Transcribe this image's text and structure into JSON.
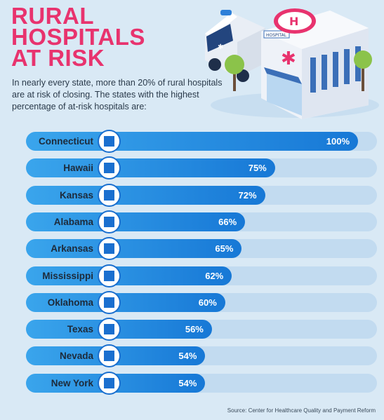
{
  "title_lines": [
    "RURAL",
    "HOSPITALS",
    "AT RISK"
  ],
  "intro": "In nearly every state, more than 20% of rural hospitals are at risk of closing. The states with the highest percentage of at-risk hospitals are:",
  "source": "Source: Center for Healthcare Quality and Payment Reform",
  "illustration": {
    "hospital_sign": "HOSPITAL",
    "icons": [
      "ambulance-icon",
      "hospital-building-icon",
      "helipad-icon",
      "tree-icon"
    ]
  },
  "colors": {
    "title": "#e8336e",
    "bar": "#1f86e0",
    "track": "#c2dbf0",
    "background": "#d9e9f5"
  },
  "chart_data": {
    "type": "bar",
    "orientation": "horizontal",
    "categories": [
      "Connecticut",
      "Hawaii",
      "Kansas",
      "Alabama",
      "Arkansas",
      "Mississippi",
      "Oklahoma",
      "Texas",
      "Nevada",
      "New York"
    ],
    "values": [
      100,
      75,
      72,
      66,
      65,
      62,
      60,
      56,
      54,
      54
    ],
    "value_labels": [
      "100%",
      "75%",
      "72%",
      "66%",
      "65%",
      "62%",
      "60%",
      "56%",
      "54%",
      "54%"
    ],
    "xlim": [
      0,
      100
    ],
    "unit": "%"
  }
}
